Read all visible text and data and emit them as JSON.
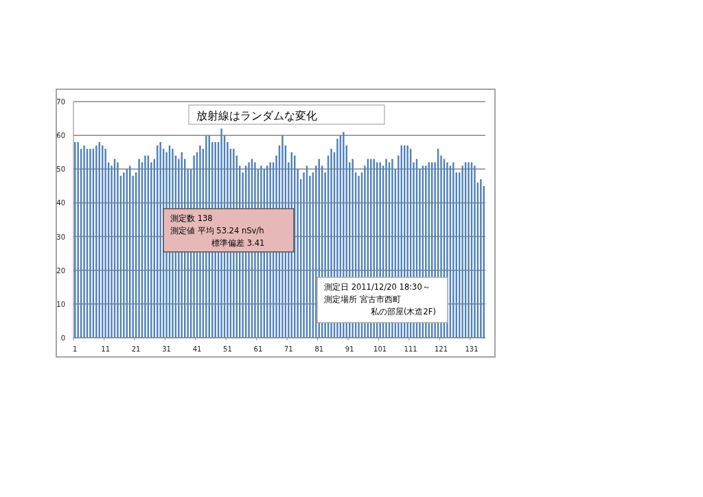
{
  "chart_data": {
    "type": "bar",
    "title": "放射線はランダムな変化",
    "x": [
      1,
      2,
      3,
      4,
      5,
      6,
      7,
      8,
      9,
      10,
      11,
      12,
      13,
      14,
      15,
      16,
      17,
      18,
      19,
      20,
      21,
      22,
      23,
      24,
      25,
      26,
      27,
      28,
      29,
      30,
      31,
      32,
      33,
      34,
      35,
      36,
      37,
      38,
      39,
      40,
      41,
      42,
      43,
      44,
      45,
      46,
      47,
      48,
      49,
      50,
      51,
      52,
      53,
      54,
      55,
      56,
      57,
      58,
      59,
      60,
      61,
      62,
      63,
      64,
      65,
      66,
      67,
      68,
      69,
      70,
      71,
      72,
      73,
      74,
      75,
      76,
      77,
      78,
      79,
      80,
      81,
      82,
      83,
      84,
      85,
      86,
      87,
      88,
      89,
      90,
      91,
      92,
      93,
      94,
      95,
      96,
      97,
      98,
      99,
      100,
      101,
      102,
      103,
      104,
      105,
      106,
      107,
      108,
      109,
      110,
      111,
      112,
      113,
      114,
      115,
      116,
      117,
      118,
      119,
      120,
      121,
      122,
      123,
      124,
      125,
      126,
      127,
      128,
      129,
      130,
      131,
      132,
      133,
      134,
      135
    ],
    "values": [
      58,
      58,
      56,
      57,
      56,
      56,
      56,
      57,
      58,
      57,
      56,
      52,
      51,
      53,
      52,
      48,
      49,
      50,
      51,
      48,
      49,
      53,
      52,
      54,
      54,
      52,
      53,
      57,
      58,
      56,
      55,
      57,
      56,
      54,
      53,
      55,
      53,
      50,
      50,
      54,
      55,
      57,
      56,
      60,
      60,
      58,
      58,
      58,
      62,
      60,
      58,
      56,
      56,
      54,
      51,
      49,
      51,
      52,
      53,
      52,
      50,
      51,
      50,
      51,
      52,
      52,
      54,
      57,
      60,
      57,
      52,
      55,
      54,
      50,
      47,
      49,
      51,
      48,
      49,
      51,
      53,
      51,
      49,
      54,
      56,
      55,
      59,
      60,
      61,
      57,
      52,
      53,
      49,
      48,
      49,
      51,
      53,
      53,
      53,
      52,
      52,
      51,
      53,
      52,
      53,
      50,
      54,
      57,
      57,
      57,
      56,
      52,
      53,
      50,
      51,
      51,
      52,
      52,
      52,
      56,
      54,
      53,
      52,
      51,
      52,
      49,
      49,
      51,
      52,
      52,
      52,
      51,
      46,
      47,
      45
    ],
    "color": "#4f81bd",
    "xlim": [
      0.5,
      135.5
    ],
    "xticks": [
      1,
      11,
      21,
      31,
      41,
      51,
      61,
      71,
      81,
      91,
      101,
      111,
      121,
      131
    ],
    "ylim": [
      0,
      70
    ],
    "yticks": [
      0,
      10,
      20,
      30,
      40,
      50,
      60,
      70
    ],
    "grid": "y",
    "annotations": [
      "測定数 138",
      "測定値 平均 53.24 nSv/h",
      "標準偏差 3.41",
      "測定日 2011/12/20 18:30～",
      "測定場所 宮古市西町",
      "私の部屋(木造2F)"
    ]
  }
}
